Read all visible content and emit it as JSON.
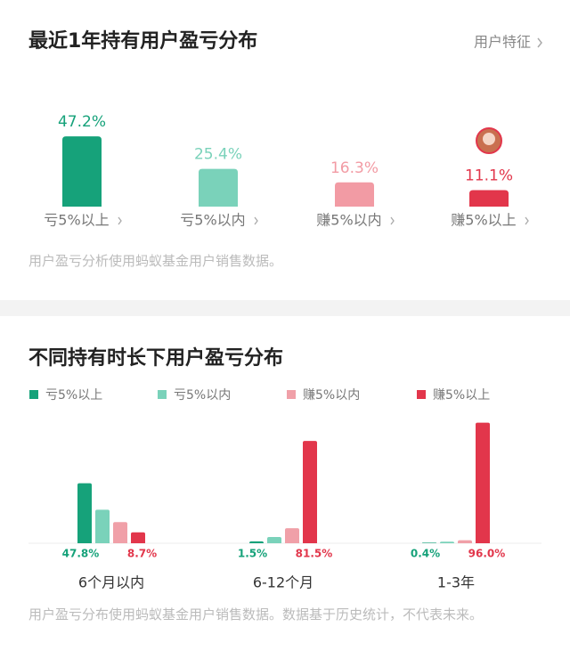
{
  "section_link": "用户特征",
  "chart_data": [
    {
      "type": "bar",
      "title": "最近1年持有用户盈亏分布",
      "categories": [
        "亏5%以上",
        "亏5%以内",
        "赚5%以内",
        "赚5%以上"
      ],
      "values": [
        47.2,
        25.4,
        16.3,
        11.1
      ],
      "value_labels": [
        "47.2%",
        "25.4%",
        "16.3%",
        "11.1%"
      ],
      "colors": [
        "#16a27a",
        "#7ad2ba",
        "#f29ba4",
        "#e2364b"
      ],
      "note": "用户盈亏分析使用蚂蚁基金用户销售数据。"
    },
    {
      "type": "bar",
      "title": "不同持有时长下用户盈亏分布",
      "categories": [
        "6个月以内",
        "6-12个月",
        "1-3年"
      ],
      "series": [
        {
          "name": "亏5%以上",
          "color": "#16a27a",
          "values": [
            47.8,
            1.5,
            0.4
          ],
          "value_labels": [
            "47.8%",
            "1.5%",
            "0.4%"
          ]
        },
        {
          "name": "亏5%以内",
          "color": "#7ad2ba",
          "values": [
            26.7,
            5.0,
            1.2
          ]
        },
        {
          "name": "赚5%以内",
          "color": "#f0a0a8",
          "values": [
            16.8,
            12.0,
            2.4
          ]
        },
        {
          "name": "赚5%以上",
          "color": "#e2364b",
          "values": [
            8.7,
            81.5,
            96.0
          ],
          "value_labels": [
            "8.7%",
            "81.5%",
            "96.0%"
          ]
        }
      ],
      "note": "用户盈亏分布使用蚂蚁基金用户销售数据。数据基于历史统计，不代表未来。"
    }
  ]
}
